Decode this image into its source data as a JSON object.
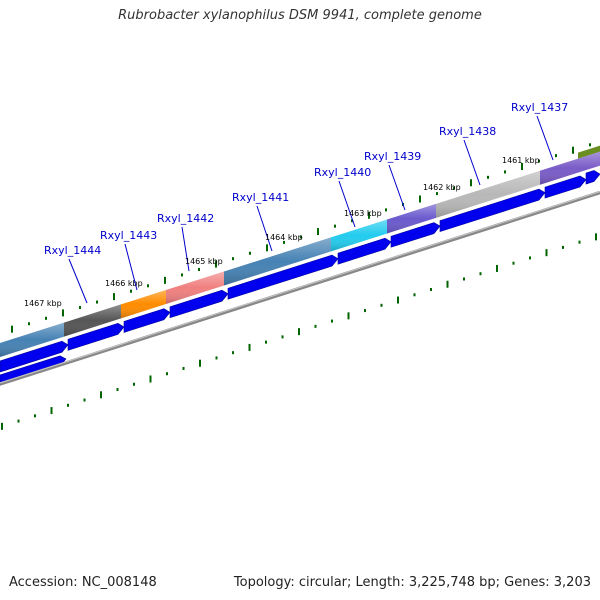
{
  "title": "Rubrobacter xylanophilus DSM 9941, complete genome",
  "footer": {
    "accession": "Accession: NC_008148",
    "summary": "Topology: circular; Length: 3,225,748 bp; Genes: 3,203"
  },
  "colors": {
    "gene_arrow": "#0000ee",
    "label": "#0000cc",
    "tick": "#006400",
    "backbone": "#888888"
  },
  "kbp_labels": [
    "1461 kbp",
    "1462 kbp",
    "1463 kbp",
    "1464 kbp",
    "1465 kbp",
    "1466 kbp",
    "1467 kbp"
  ],
  "genes": [
    {
      "name": "Rxyl_1437",
      "color": "#7a5cc8"
    },
    {
      "name": "Rxyl_1438",
      "color": "#b8b8b8"
    },
    {
      "name": "Rxyl_1439",
      "color": "#6a5acd"
    },
    {
      "name": "Rxyl_1440",
      "color": "#22ccee"
    },
    {
      "name": "Rxyl_1441",
      "color": "#4682b4"
    },
    {
      "name": "Rxyl_1442",
      "color": "#f08080"
    },
    {
      "name": "Rxyl_1443",
      "color": "#ff8c00"
    },
    {
      "name": "Rxyl_1444",
      "color": "#555555"
    }
  ]
}
